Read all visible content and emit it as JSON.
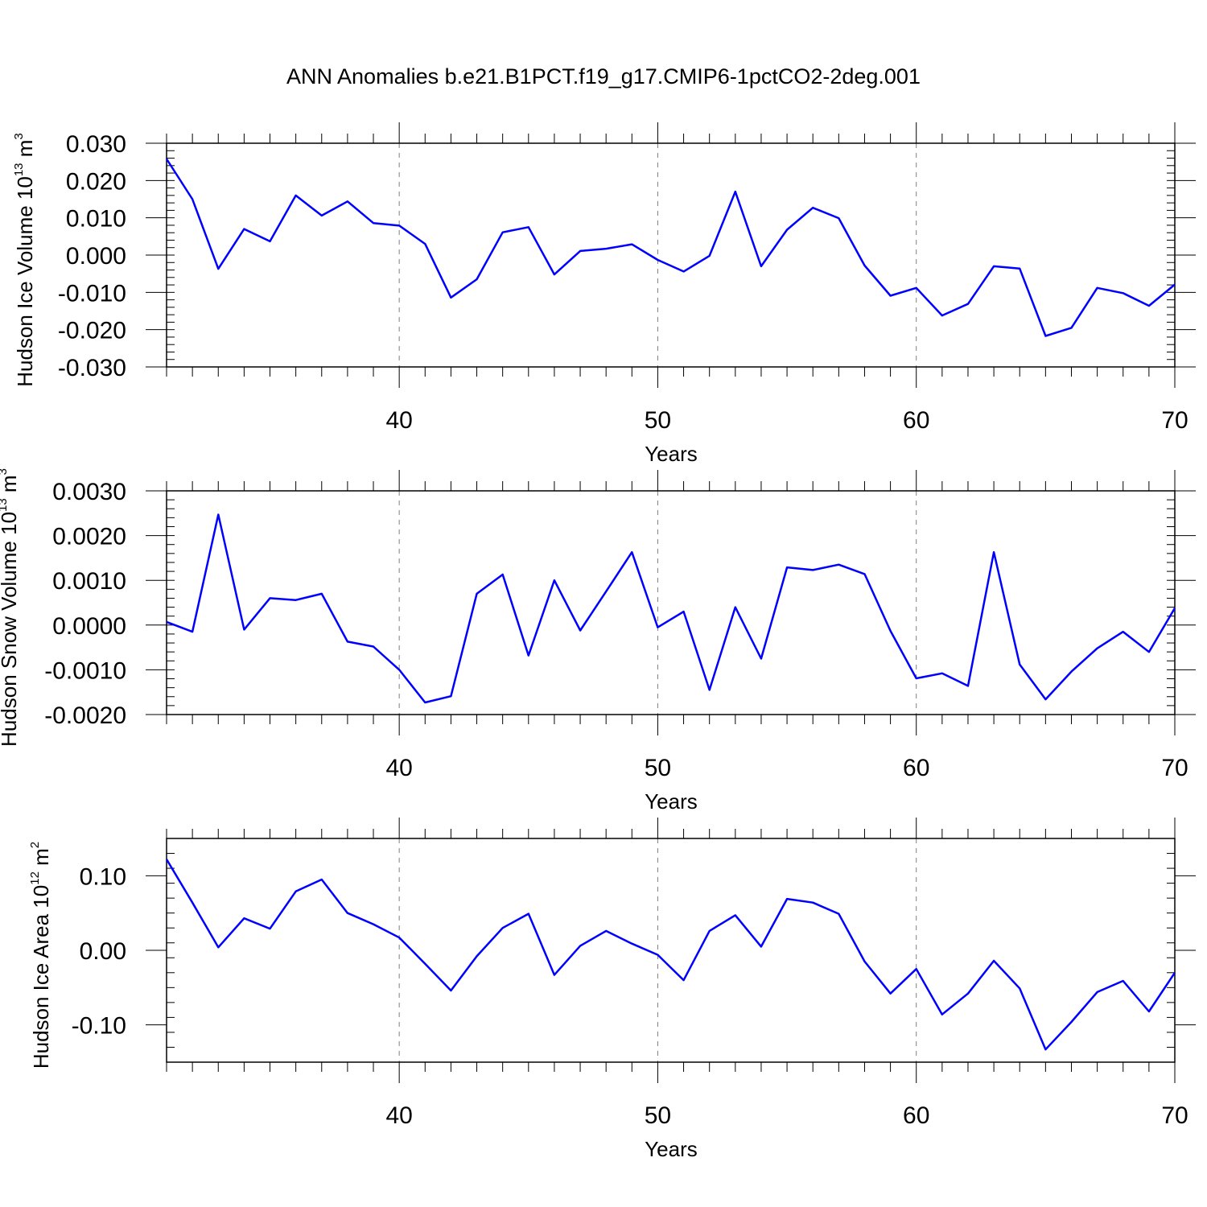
{
  "title": "ANN Anomalies b.e21.B1PCT.f19_g17.CMIP6-1pctCO2-2deg.001",
  "colors": {
    "line": "#0000ff",
    "grid": "#7f7f7f",
    "axis": "#000000"
  },
  "chart_data": [
    {
      "type": "line",
      "ylabel": {
        "text": "Hudson Ice Volume 10",
        "sup1": "13",
        "unit": " m",
        "sup2": "3"
      },
      "xlabel": "Years",
      "xlim": [
        31,
        70
      ],
      "ylim": [
        -0.03,
        0.03
      ],
      "xticks": [
        40,
        50,
        60,
        70
      ],
      "xtick_labels": [
        "40",
        "50",
        "60",
        "70"
      ],
      "yticks": [
        -0.03,
        -0.02,
        -0.01,
        0.0,
        0.01,
        0.02,
        0.03
      ],
      "ytick_labels": [
        "-0.030",
        "-0.020",
        "-0.010",
        "0.000",
        "0.010",
        "0.020",
        "0.030"
      ],
      "y_minor_step": 0.002,
      "grid_x": [
        40,
        50,
        60
      ],
      "x": [
        31,
        32,
        33,
        34,
        35,
        36,
        37,
        38,
        39,
        40,
        41,
        42,
        43,
        44,
        45,
        46,
        47,
        48,
        49,
        50,
        51,
        52,
        53,
        54,
        55,
        56,
        57,
        58,
        59,
        60,
        61,
        62,
        63,
        64,
        65,
        66,
        67,
        68,
        69,
        70
      ],
      "y": [
        0.0258,
        0.015,
        -0.0037,
        0.007,
        0.0037,
        0.016,
        0.0106,
        0.0144,
        0.0086,
        0.0079,
        0.003,
        -0.0114,
        -0.0065,
        0.0061,
        0.0075,
        -0.0052,
        0.0011,
        0.0017,
        0.0029,
        -0.0013,
        -0.0044,
        -0.0002,
        0.017,
        -0.003,
        0.0068,
        0.0127,
        0.0099,
        -0.0028,
        -0.0109,
        -0.0088,
        -0.0162,
        -0.0131,
        -0.003,
        -0.0036,
        -0.0217,
        -0.0195,
        -0.0088,
        -0.0102,
        -0.0136,
        -0.0079
      ]
    },
    {
      "type": "line",
      "ylabel": {
        "text": "Hudson Snow Volume 10",
        "sup1": "13",
        "unit": " m",
        "sup2": "3"
      },
      "xlabel": "Years",
      "xlim": [
        31,
        70
      ],
      "ylim": [
        -0.002,
        0.003
      ],
      "xticks": [
        40,
        50,
        60,
        70
      ],
      "xtick_labels": [
        "40",
        "50",
        "60",
        "70"
      ],
      "yticks": [
        -0.002,
        -0.001,
        0.0,
        0.001,
        0.002,
        0.003
      ],
      "ytick_labels": [
        "-0.0020",
        "-0.0010",
        "0.0000",
        "0.0010",
        "0.0020",
        "0.0030"
      ],
      "y_minor_step": 0.0002,
      "grid_x": [
        40,
        50,
        60
      ],
      "x": [
        31,
        32,
        33,
        34,
        35,
        36,
        37,
        38,
        39,
        40,
        41,
        42,
        43,
        44,
        45,
        46,
        47,
        48,
        49,
        50,
        51,
        52,
        53,
        54,
        55,
        56,
        57,
        58,
        59,
        60,
        61,
        62,
        63,
        64,
        65,
        66,
        67,
        68,
        69,
        70
      ],
      "y": [
        7e-05,
        -0.00015,
        0.00247,
        -0.0001,
        0.0006,
        0.00056,
        0.0007,
        -0.00037,
        -0.00048,
        -0.001,
        -0.00173,
        -0.00159,
        0.0007,
        0.00113,
        -0.00068,
        0.001,
        -0.00012,
        0.00075,
        0.00163,
        -5e-05,
        0.0003,
        -0.00145,
        0.0004,
        -0.00075,
        0.00129,
        0.00123,
        0.00135,
        0.00114,
        -0.00013,
        -0.00119,
        -0.00108,
        -0.00136,
        0.00163,
        -0.00088,
        -0.00166,
        -0.00104,
        -0.00052,
        -0.00015,
        -0.0006,
        0.00038
      ]
    },
    {
      "type": "line",
      "ylabel": {
        "text": "Hudson Ice Area 10",
        "sup1": "12",
        "unit": " m",
        "sup2": "2"
      },
      "xlabel": "Years",
      "xlim": [
        31,
        70
      ],
      "ylim": [
        -0.15,
        0.15
      ],
      "xticks": [
        40,
        50,
        60,
        70
      ],
      "xtick_labels": [
        "40",
        "50",
        "60",
        "70"
      ],
      "yticks": [
        -0.1,
        0.0,
        0.1
      ],
      "ytick_labels": [
        "-0.10",
        "0.00",
        "0.10"
      ],
      "y_minor_step": 0.02,
      "grid_x": [
        40,
        50,
        60
      ],
      "x": [
        31,
        32,
        33,
        34,
        35,
        36,
        37,
        38,
        39,
        40,
        41,
        42,
        43,
        44,
        45,
        46,
        47,
        48,
        49,
        50,
        51,
        52,
        53,
        54,
        55,
        56,
        57,
        58,
        59,
        60,
        61,
        62,
        63,
        64,
        65,
        66,
        67,
        68,
        69,
        70
      ],
      "y": [
        0.122,
        0.064,
        0.004,
        0.043,
        0.029,
        0.079,
        0.095,
        0.05,
        0.035,
        0.017,
        -0.018,
        -0.054,
        -0.008,
        0.03,
        0.049,
        -0.033,
        0.006,
        0.026,
        0.009,
        -0.006,
        -0.04,
        0.026,
        0.047,
        0.005,
        0.069,
        0.064,
        0.049,
        -0.015,
        -0.058,
        -0.025,
        -0.086,
        -0.058,
        -0.014,
        -0.051,
        -0.133,
        -0.096,
        -0.056,
        -0.041,
        -0.082,
        -0.03
      ]
    }
  ]
}
